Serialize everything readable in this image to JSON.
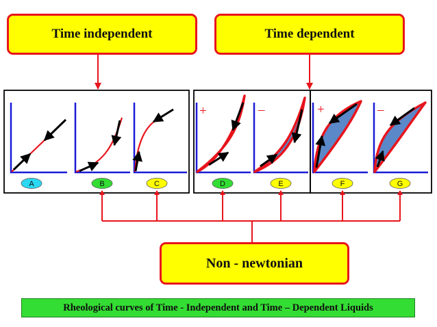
{
  "headers": {
    "time_independent": "Time independent",
    "time_dependent": "Time dependent",
    "non_newtonian": "Non - newtonian"
  },
  "caption": "Rheological curves of  Time - Independent and Time – Dependent Liquids",
  "curves": [
    {
      "label": "A",
      "sign": "",
      "label_color": "#2ad8f2"
    },
    {
      "label": "B",
      "sign": "",
      "label_color": "#33dd33"
    },
    {
      "label": "C",
      "sign": "",
      "label_color": "#ffff00"
    },
    {
      "label": "D",
      "sign": "+",
      "label_color": "#33dd33"
    },
    {
      "label": "E",
      "sign": "–",
      "label_color": "#ffff00"
    },
    {
      "label": "F",
      "sign": "+",
      "label_color": "#ffff00"
    },
    {
      "label": "G",
      "sign": "–",
      "label_color": "#ffff00"
    }
  ],
  "colors": {
    "header_fill": "#ffff00",
    "border_red": "#e8141c",
    "axis_blue": "#1a1ad6",
    "loop_fill": "#5b88c8",
    "caption_fill": "#33dd33"
  }
}
